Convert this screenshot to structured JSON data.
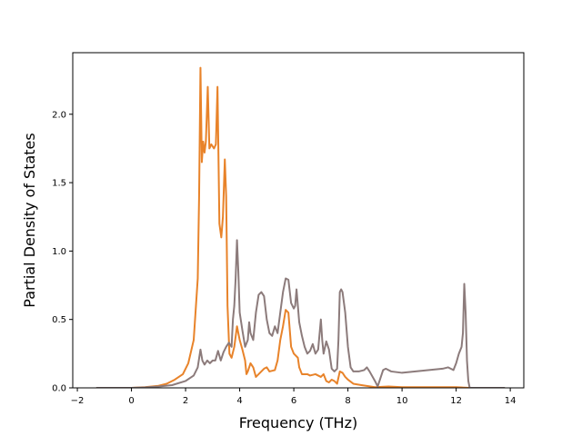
{
  "chart_data": {
    "type": "line",
    "title": "",
    "xlabel": "Frequency (THz)",
    "ylabel": "Partial Density of States",
    "xlim": [
      -2.17,
      14.5
    ],
    "ylim": [
      0.0,
      2.45
    ],
    "xticks": [
      -2,
      0,
      2,
      4,
      6,
      8,
      10,
      12,
      14
    ],
    "yticks": [
      0.0,
      0.5,
      1.0,
      1.5,
      2.0
    ],
    "xtick_labels": [
      "−2",
      "0",
      "2",
      "4",
      "6",
      "8",
      "10",
      "12",
      "14"
    ],
    "ytick_labels": [
      "0.0",
      "0.5",
      "1.0",
      "1.5",
      "2.0"
    ],
    "grid": false,
    "legend": "none",
    "series": [
      {
        "color": "#e8832a",
        "points": [
          [
            -1.3,
            0.0
          ],
          [
            0.0,
            0.0
          ],
          [
            0.5,
            0.005
          ],
          [
            1.0,
            0.015
          ],
          [
            1.3,
            0.03
          ],
          [
            1.6,
            0.06
          ],
          [
            1.9,
            0.1
          ],
          [
            2.1,
            0.18
          ],
          [
            2.3,
            0.35
          ],
          [
            2.45,
            0.8
          ],
          [
            2.5,
            1.4
          ],
          [
            2.55,
            2.34
          ],
          [
            2.6,
            1.65
          ],
          [
            2.65,
            1.8
          ],
          [
            2.7,
            1.72
          ],
          [
            2.75,
            1.8
          ],
          [
            2.82,
            2.2
          ],
          [
            2.88,
            1.75
          ],
          [
            2.95,
            1.78
          ],
          [
            3.05,
            1.75
          ],
          [
            3.12,
            1.78
          ],
          [
            3.18,
            2.2
          ],
          [
            3.25,
            1.2
          ],
          [
            3.32,
            1.1
          ],
          [
            3.38,
            1.25
          ],
          [
            3.45,
            1.67
          ],
          [
            3.5,
            1.4
          ],
          [
            3.55,
            0.6
          ],
          [
            3.62,
            0.25
          ],
          [
            3.7,
            0.22
          ],
          [
            3.8,
            0.3
          ],
          [
            3.9,
            0.45
          ],
          [
            4.0,
            0.35
          ],
          [
            4.1,
            0.28
          ],
          [
            4.2,
            0.2
          ],
          [
            4.25,
            0.1
          ],
          [
            4.3,
            0.12
          ],
          [
            4.4,
            0.18
          ],
          [
            4.5,
            0.15
          ],
          [
            4.6,
            0.08
          ],
          [
            4.7,
            0.1
          ],
          [
            4.9,
            0.14
          ],
          [
            5.0,
            0.15
          ],
          [
            5.1,
            0.12
          ],
          [
            5.3,
            0.13
          ],
          [
            5.4,
            0.2
          ],
          [
            5.5,
            0.35
          ],
          [
            5.6,
            0.45
          ],
          [
            5.7,
            0.57
          ],
          [
            5.8,
            0.55
          ],
          [
            5.9,
            0.3
          ],
          [
            6.0,
            0.25
          ],
          [
            6.15,
            0.22
          ],
          [
            6.2,
            0.15
          ],
          [
            6.3,
            0.1
          ],
          [
            6.5,
            0.1
          ],
          [
            6.6,
            0.09
          ],
          [
            6.8,
            0.1
          ],
          [
            7.0,
            0.08
          ],
          [
            7.1,
            0.1
          ],
          [
            7.2,
            0.05
          ],
          [
            7.3,
            0.04
          ],
          [
            7.4,
            0.06
          ],
          [
            7.5,
            0.05
          ],
          [
            7.6,
            0.03
          ],
          [
            7.7,
            0.12
          ],
          [
            7.8,
            0.11
          ],
          [
            7.9,
            0.08
          ],
          [
            8.0,
            0.06
          ],
          [
            8.2,
            0.03
          ],
          [
            8.5,
            0.02
          ],
          [
            9.0,
            0.005
          ],
          [
            9.5,
            0.01
          ],
          [
            10.0,
            0.005
          ],
          [
            11.0,
            0.005
          ],
          [
            12.0,
            0.005
          ],
          [
            12.5,
            0.0
          ],
          [
            13.8,
            0.0
          ]
        ]
      },
      {
        "color": "#8c7b7b",
        "points": [
          [
            -1.3,
            0.0
          ],
          [
            0.0,
            0.0
          ],
          [
            0.5,
            0.003
          ],
          [
            1.0,
            0.01
          ],
          [
            1.5,
            0.02
          ],
          [
            2.0,
            0.05
          ],
          [
            2.3,
            0.09
          ],
          [
            2.45,
            0.15
          ],
          [
            2.55,
            0.28
          ],
          [
            2.62,
            0.2
          ],
          [
            2.7,
            0.17
          ],
          [
            2.8,
            0.2
          ],
          [
            2.9,
            0.18
          ],
          [
            3.0,
            0.2
          ],
          [
            3.1,
            0.2
          ],
          [
            3.2,
            0.27
          ],
          [
            3.3,
            0.2
          ],
          [
            3.4,
            0.26
          ],
          [
            3.5,
            0.3
          ],
          [
            3.6,
            0.33
          ],
          [
            3.7,
            0.3
          ],
          [
            3.75,
            0.5
          ],
          [
            3.8,
            0.6
          ],
          [
            3.85,
            0.8
          ],
          [
            3.9,
            1.08
          ],
          [
            3.95,
            0.85
          ],
          [
            4.0,
            0.55
          ],
          [
            4.1,
            0.42
          ],
          [
            4.2,
            0.3
          ],
          [
            4.3,
            0.35
          ],
          [
            4.35,
            0.48
          ],
          [
            4.4,
            0.4
          ],
          [
            4.5,
            0.35
          ],
          [
            4.6,
            0.55
          ],
          [
            4.7,
            0.68
          ],
          [
            4.8,
            0.7
          ],
          [
            4.9,
            0.67
          ],
          [
            5.0,
            0.5
          ],
          [
            5.1,
            0.4
          ],
          [
            5.2,
            0.38
          ],
          [
            5.3,
            0.45
          ],
          [
            5.4,
            0.4
          ],
          [
            5.5,
            0.55
          ],
          [
            5.6,
            0.7
          ],
          [
            5.7,
            0.8
          ],
          [
            5.8,
            0.79
          ],
          [
            5.9,
            0.62
          ],
          [
            6.0,
            0.58
          ],
          [
            6.05,
            0.6
          ],
          [
            6.1,
            0.72
          ],
          [
            6.15,
            0.6
          ],
          [
            6.2,
            0.48
          ],
          [
            6.3,
            0.38
          ],
          [
            6.4,
            0.3
          ],
          [
            6.5,
            0.25
          ],
          [
            6.6,
            0.27
          ],
          [
            6.7,
            0.32
          ],
          [
            6.8,
            0.25
          ],
          [
            6.9,
            0.28
          ],
          [
            7.0,
            0.5
          ],
          [
            7.05,
            0.35
          ],
          [
            7.1,
            0.25
          ],
          [
            7.2,
            0.34
          ],
          [
            7.3,
            0.28
          ],
          [
            7.4,
            0.14
          ],
          [
            7.5,
            0.12
          ],
          [
            7.6,
            0.14
          ],
          [
            7.65,
            0.35
          ],
          [
            7.7,
            0.7
          ],
          [
            7.75,
            0.72
          ],
          [
            7.8,
            0.7
          ],
          [
            7.9,
            0.55
          ],
          [
            8.0,
            0.3
          ],
          [
            8.1,
            0.15
          ],
          [
            8.2,
            0.12
          ],
          [
            8.4,
            0.12
          ],
          [
            8.6,
            0.13
          ],
          [
            8.7,
            0.15
          ],
          [
            8.8,
            0.12
          ],
          [
            9.0,
            0.05
          ],
          [
            9.1,
            0.01
          ],
          [
            9.2,
            0.07
          ],
          [
            9.3,
            0.13
          ],
          [
            9.4,
            0.14
          ],
          [
            9.6,
            0.12
          ],
          [
            10.0,
            0.11
          ],
          [
            10.5,
            0.12
          ],
          [
            11.0,
            0.13
          ],
          [
            11.5,
            0.14
          ],
          [
            11.7,
            0.15
          ],
          [
            11.9,
            0.13
          ],
          [
            12.0,
            0.18
          ],
          [
            12.1,
            0.25
          ],
          [
            12.2,
            0.3
          ],
          [
            12.25,
            0.4
          ],
          [
            12.3,
            0.76
          ],
          [
            12.35,
            0.55
          ],
          [
            12.4,
            0.2
          ],
          [
            12.45,
            0.05
          ],
          [
            12.5,
            0.0
          ],
          [
            13.8,
            0.0
          ]
        ]
      }
    ]
  }
}
